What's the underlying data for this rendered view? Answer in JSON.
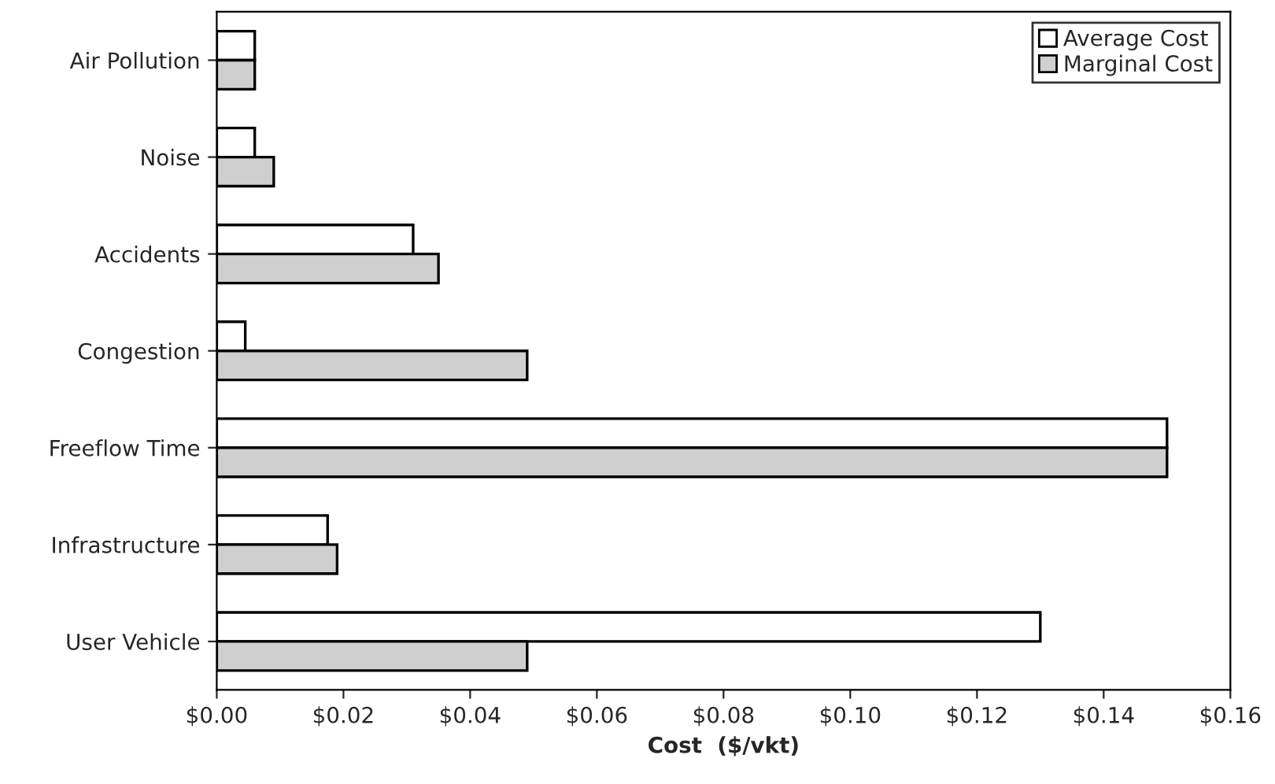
{
  "chart_data": {
    "type": "bar",
    "orientation": "horizontal",
    "xlabel": "Cost  ($/vkt)",
    "categories": [
      "Air Pollution",
      "Noise",
      "Accidents",
      "Congestion",
      "Freeflow Time",
      "Infrastructure",
      "User Vehicle"
    ],
    "series": [
      {
        "name": "Average Cost",
        "color": "#ffffff",
        "values": [
          0.006,
          0.006,
          0.031,
          0.0045,
          0.15,
          0.0175,
          0.13
        ]
      },
      {
        "name": "Marginal Cost",
        "color": "#cfcfcf",
        "values": [
          0.006,
          0.009,
          0.035,
          0.049,
          0.15,
          0.019,
          0.049
        ]
      }
    ],
    "xlim": [
      0,
      0.16
    ],
    "xticks": [
      {
        "value": 0,
        "label": "$0.00"
      },
      {
        "value": 0.02,
        "label": "$0.02"
      },
      {
        "value": 0.04,
        "label": "$0.04"
      },
      {
        "value": 0.06,
        "label": "$0.06"
      },
      {
        "value": 0.08,
        "label": "$0.08"
      },
      {
        "value": 0.1,
        "label": "$0.10"
      },
      {
        "value": 0.12,
        "label": "$0.12"
      },
      {
        "value": 0.14,
        "label": "$0.14"
      },
      {
        "value": 0.16,
        "label": "$0.16"
      }
    ],
    "grid": false,
    "legend": "top right"
  }
}
